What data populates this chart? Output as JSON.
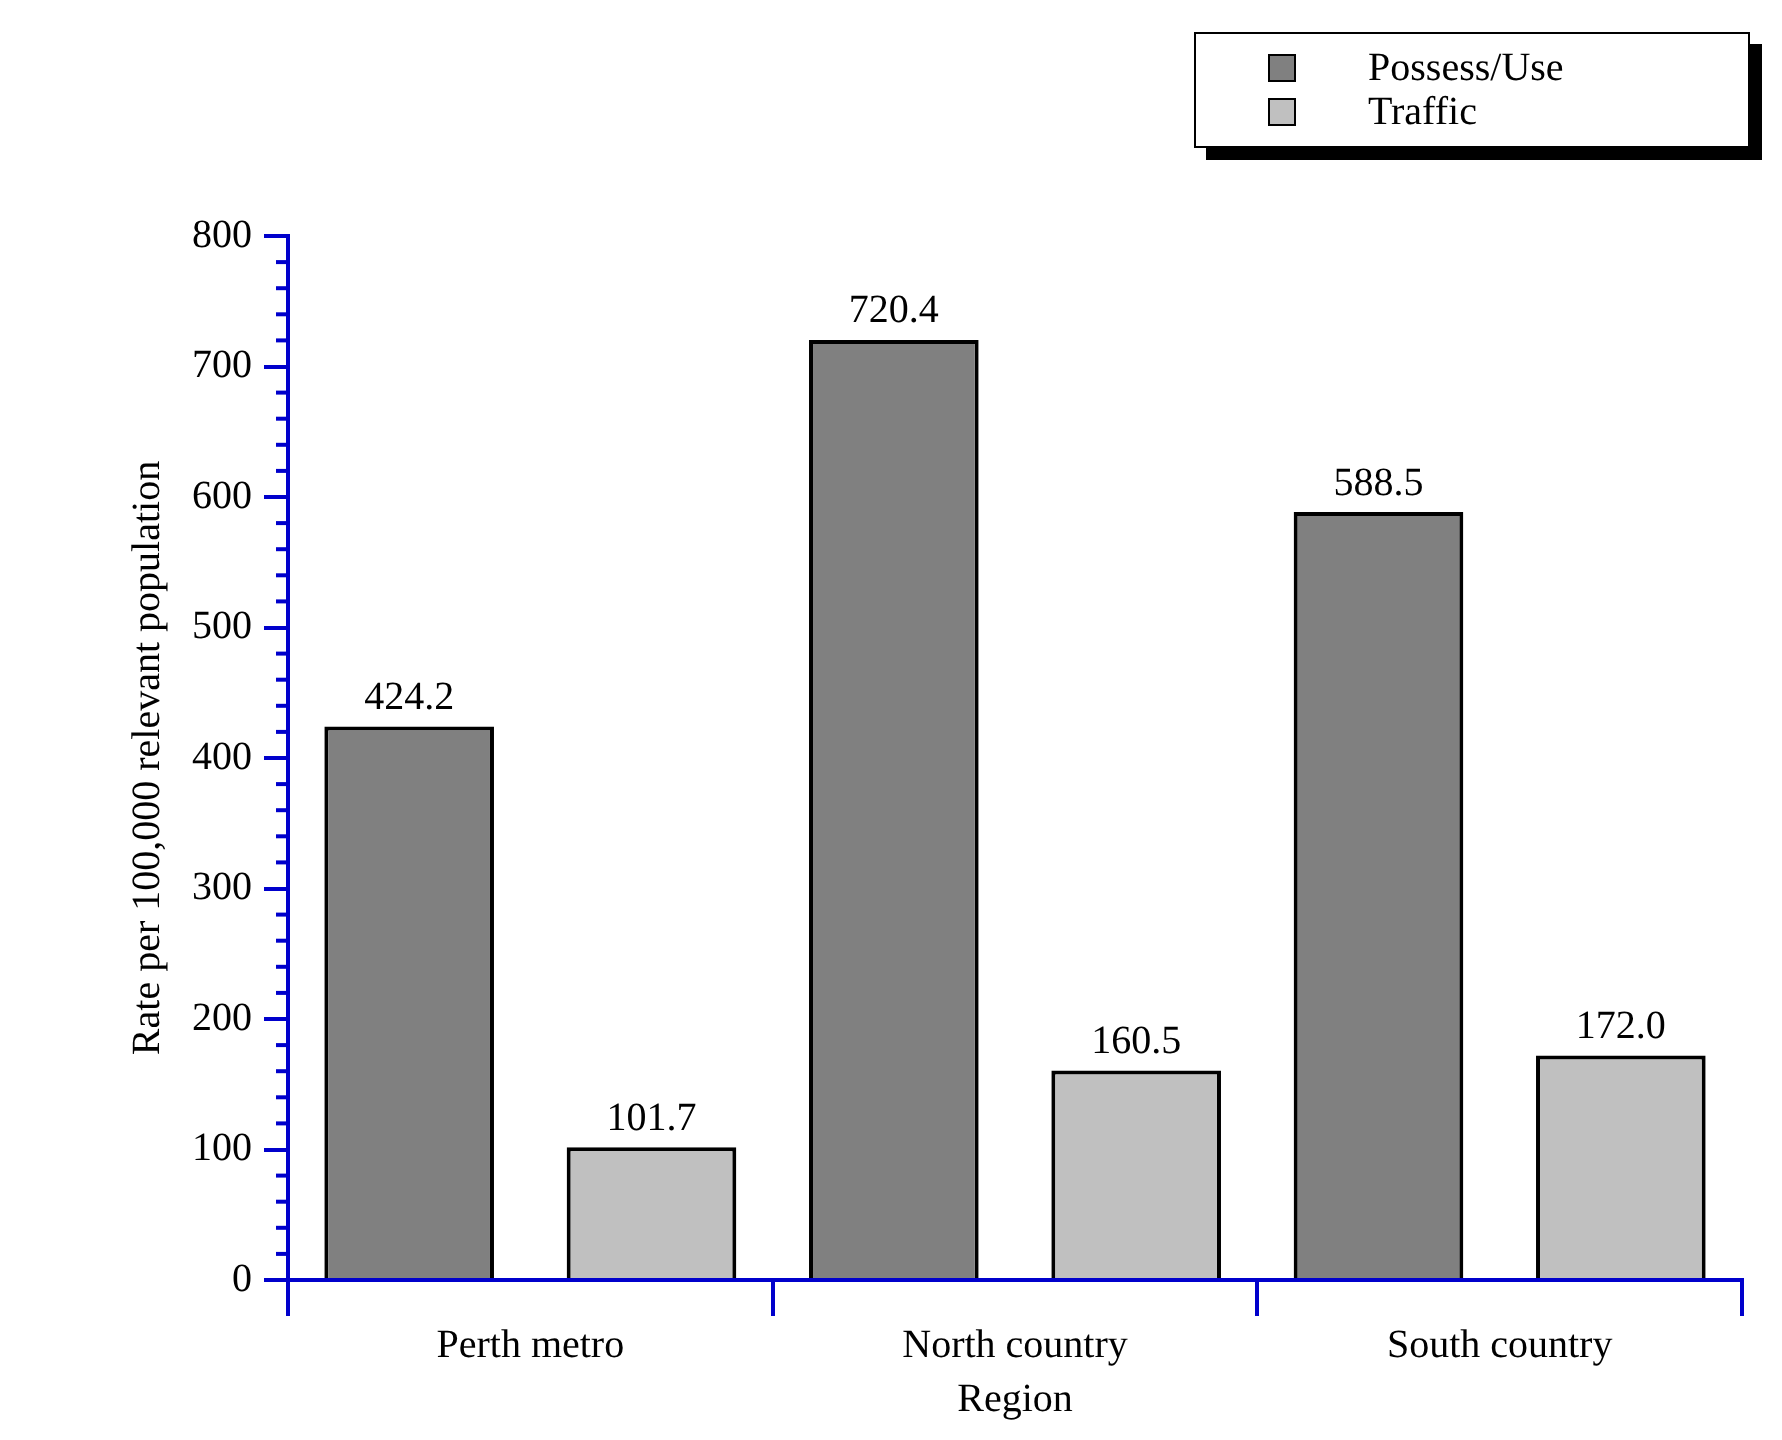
{
  "chart_data": {
    "type": "bar",
    "xlabel": "Region",
    "ylabel": "Rate per 100,000 relevant population",
    "categories": [
      "Perth metro",
      "North country",
      "South country"
    ],
    "series": [
      {
        "name": "Possess/Use",
        "color": "#808080",
        "values": [
          424.2,
          720.4,
          588.5
        ],
        "value_labels": [
          "424.2",
          "720.4",
          "588.5"
        ]
      },
      {
        "name": "Traffic",
        "color": "#c0c0c0",
        "values": [
          101.7,
          160.5,
          172.0
        ],
        "value_labels": [
          "101.7",
          "160.5",
          "172.0"
        ]
      }
    ],
    "ylim": [
      0,
      800
    ],
    "yticks": [
      0,
      100,
      200,
      300,
      400,
      500,
      600,
      700,
      800
    ],
    "grid": false,
    "legend": "top right"
  }
}
